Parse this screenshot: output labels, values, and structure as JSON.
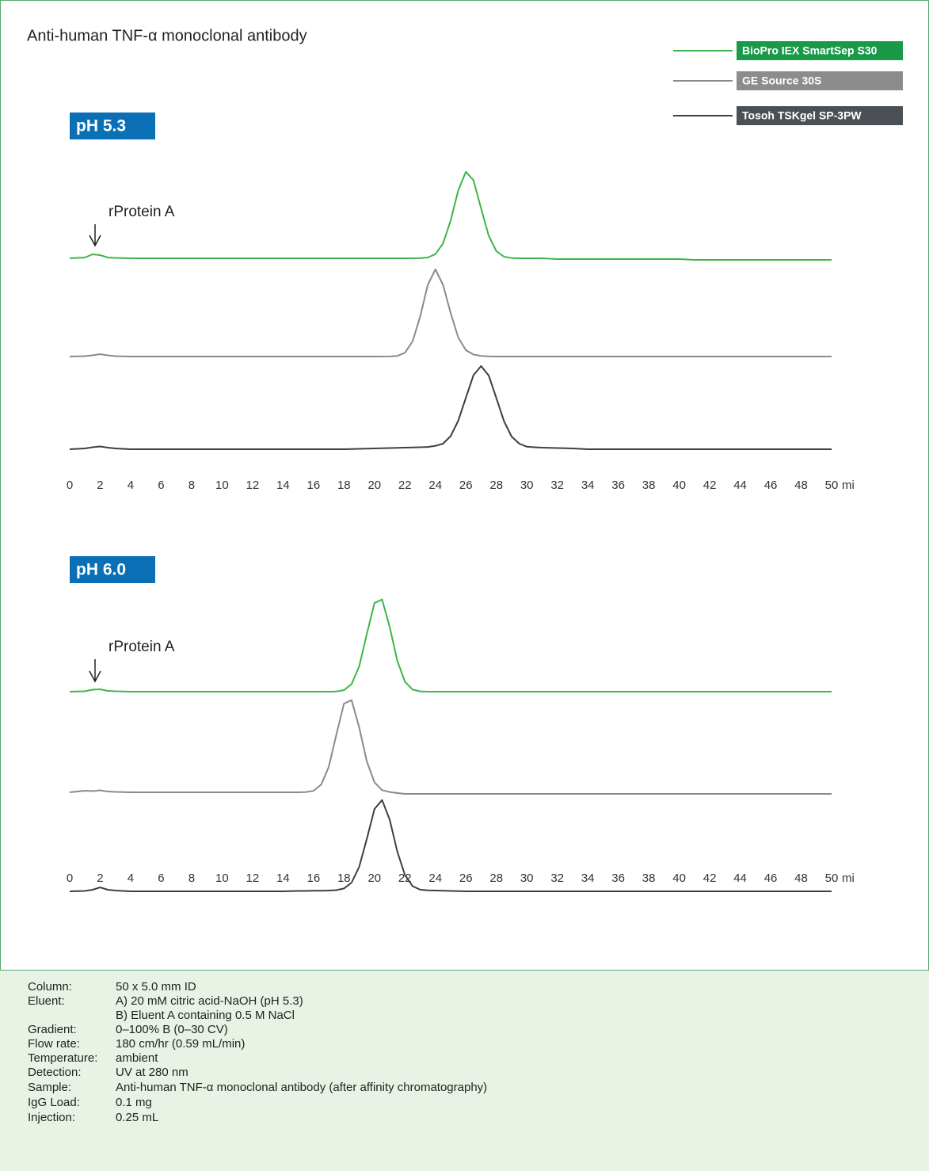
{
  "title": "Anti-human TNF-α monoclonal antibody",
  "chart_data": [
    {
      "type": "line",
      "label": "pH 5.3",
      "annotation": "rProtein A",
      "xlabel": "mi",
      "xlim": [
        0,
        50
      ],
      "xticks": [
        0,
        2,
        4,
        6,
        8,
        10,
        12,
        14,
        16,
        18,
        20,
        22,
        24,
        26,
        28,
        30,
        32,
        34,
        36,
        38,
        40,
        42,
        44,
        46,
        48,
        50
      ],
      "x": [
        0,
        1,
        1.5,
        2,
        2.5,
        3,
        4,
        5,
        6,
        7,
        8,
        9,
        10,
        11,
        12,
        13,
        14,
        15,
        16,
        17,
        18,
        19,
        20,
        21,
        21.5,
        22,
        22.5,
        23,
        23.5,
        24,
        24.5,
        25,
        25.5,
        26,
        26.5,
        27,
        27.5,
        28,
        28.5,
        29,
        29.5,
        30,
        30.5,
        31,
        32,
        33,
        34,
        35,
        36,
        37,
        38,
        39,
        40,
        41,
        42,
        43,
        44,
        45,
        46,
        47,
        48,
        49,
        50
      ],
      "series": [
        {
          "name": "BioPro IEX SmartSep S30",
          "color": "#3cb54a",
          "values": [
            0,
            1,
            5,
            4,
            1,
            0.5,
            0,
            0,
            0,
            0,
            0,
            0,
            0,
            0,
            0,
            0,
            0,
            0,
            0,
            0,
            0,
            0,
            0,
            0,
            0,
            0,
            0,
            0.1,
            1,
            5.2,
            18.7,
            47.6,
            85.7,
            109.2,
            98.5,
            62.8,
            28.4,
            9,
            2,
            0.3,
            0,
            0,
            0,
            0,
            -1,
            -1,
            -1,
            -1,
            -1,
            -1,
            -1,
            -1,
            -1,
            -2,
            -2,
            -2,
            -2,
            -2,
            -2,
            -2,
            -2,
            -2,
            -2
          ]
        },
        {
          "name": "GE Source 30S",
          "color": "#8a8a8a",
          "values": [
            0,
            0.5,
            1.5,
            3,
            1.5,
            0.5,
            0,
            0,
            0,
            0,
            0,
            0,
            0,
            0,
            0,
            0,
            0,
            0,
            0,
            0,
            0,
            0,
            0,
            0.1,
            0.8,
            4.8,
            19,
            50.4,
            90.5,
            110,
            90.5,
            55,
            24,
            8,
            2.5,
            0.8,
            0.2,
            0,
            0,
            0,
            0,
            0,
            0,
            0,
            0,
            0,
            0,
            0,
            0,
            0,
            0,
            0,
            0,
            0,
            0,
            0,
            0,
            0,
            0,
            0,
            0,
            0,
            0
          ]
        },
        {
          "name": "Tosoh TSKgel SP-3PW",
          "color": "#3b4045",
          "values": [
            0,
            1,
            2.5,
            3.5,
            2,
            1,
            0,
            0,
            0,
            0,
            0,
            0,
            0,
            0,
            0,
            0,
            0,
            0,
            0,
            0,
            0,
            0.5,
            1,
            1.5,
            1.8,
            2,
            2.2,
            2.5,
            2.9,
            4.2,
            7,
            16.5,
            36,
            65,
            93.5,
            105,
            93,
            64.5,
            35.5,
            16,
            7,
            3.2,
            2.5,
            2,
            1.5,
            1,
            0,
            0,
            0,
            0,
            0,
            0,
            0,
            0,
            0,
            0,
            0,
            0,
            0,
            0,
            0,
            0,
            0
          ]
        }
      ]
    },
    {
      "type": "line",
      "label": "pH 6.0",
      "annotation": "rProtein A",
      "xlabel": "mi",
      "xlim": [
        0,
        50
      ],
      "xticks": [
        0,
        2,
        4,
        6,
        8,
        10,
        12,
        14,
        16,
        18,
        20,
        22,
        24,
        26,
        28,
        30,
        32,
        34,
        36,
        38,
        40,
        42,
        44,
        46,
        48,
        50
      ],
      "x": [
        0,
        1,
        1.5,
        2,
        2.5,
        3,
        4,
        5,
        6,
        7,
        8,
        9,
        10,
        11,
        12,
        13,
        14,
        15,
        15.5,
        16,
        16.5,
        17,
        17.5,
        18,
        18.5,
        19,
        19.5,
        20,
        20.5,
        21,
        21.5,
        22,
        22.5,
        23,
        23.5,
        24,
        24.5,
        25,
        26,
        27,
        28,
        29,
        30,
        31,
        32,
        33,
        34,
        35,
        36,
        37,
        38,
        39,
        40,
        41,
        42,
        43,
        44,
        45,
        46,
        47,
        48,
        49,
        50
      ],
      "series": [
        {
          "color": "#3cb54a",
          "values": [
            0,
            0.5,
            2.5,
            3,
            1,
            0.5,
            0,
            0,
            0,
            0,
            0,
            0,
            0,
            0,
            0,
            0,
            0,
            0,
            0,
            0,
            0,
            0,
            0.3,
            1.9,
            9.6,
            32,
            72.8,
            111.9,
            116.3,
            81.8,
            39,
            12.6,
            2.7,
            0.4,
            0,
            0,
            0,
            0,
            0,
            0,
            0,
            0,
            0,
            0,
            0,
            0,
            0,
            0,
            0,
            0,
            0,
            0,
            0,
            0,
            0,
            0,
            0,
            0,
            0,
            0,
            0,
            0,
            0
          ]
        },
        {
          "color": "#8a8a8a",
          "values": [
            0,
            2,
            1.5,
            2.5,
            1,
            0.5,
            0,
            0,
            0,
            0,
            0,
            0,
            0,
            0,
            0,
            0,
            0,
            0,
            0.3,
            1.9,
            9.6,
            32,
            72.8,
            111.9,
            116.3,
            81.8,
            39,
            12.6,
            2.7,
            0.4,
            -1,
            -2,
            -2,
            -2,
            -2,
            -2,
            -2,
            -2,
            -2,
            -2,
            -2,
            -2,
            -2,
            -2,
            -2,
            -2,
            -2,
            -2,
            -2,
            -2,
            -2,
            -2,
            -2,
            -2,
            -2,
            -2,
            -2,
            -2,
            -2,
            -2,
            -2,
            -2,
            -2
          ]
        },
        {
          "color": "#3b4045",
          "values": [
            0,
            0.5,
            2,
            5,
            2,
            1,
            0,
            0,
            0,
            0,
            0,
            0,
            0,
            0,
            0,
            0,
            0,
            0.5,
            0.5,
            0.7,
            0.8,
            1,
            1.5,
            3.6,
            11,
            31,
            66.2,
            103.8,
            115.2,
            90.5,
            50.2,
            20.7,
            6.5,
            2.1,
            1.2,
            1,
            0.8,
            0.5,
            0,
            0,
            0,
            0,
            0,
            0,
            0,
            0,
            0,
            0,
            0,
            0,
            0,
            0,
            0,
            0,
            0,
            0,
            0,
            0,
            0,
            0,
            0,
            0,
            0
          ]
        }
      ]
    }
  ],
  "conditions": [
    {
      "label": "Column:",
      "lines": [
        "50 x 5.0 mm ID"
      ]
    },
    {
      "label": "Eluent:",
      "lines": [
        "A) 20 mM citric acid-NaOH (pH 5.3)",
        "B) Eluent A containing 0.5 M NaCl"
      ]
    },
    {
      "label": "Gradient:",
      "lines": [
        "0–100% B (0–30 CV)"
      ]
    },
    {
      "label": "Flow rate:",
      "lines": [
        "180 cm/hr (0.59 mL/min)"
      ]
    },
    {
      "label": "Temperature:",
      "lines": [
        "ambient"
      ]
    },
    {
      "label": "Detection:",
      "lines": [
        "UV at 280 nm"
      ]
    },
    {
      "label": "Sample:",
      "lines": [
        "Anti-human TNF-α monoclonal antibody (after affinity chromatography)"
      ]
    },
    {
      "label": "IgG Load:",
      "lines": [
        "0.1 mg"
      ]
    },
    {
      "label": "Injection:",
      "lines": [
        "0.25 mL"
      ]
    }
  ]
}
